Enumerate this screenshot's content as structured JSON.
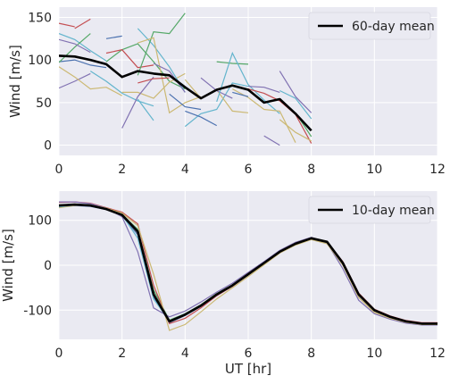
{
  "chart_data": [
    {
      "type": "line",
      "ylabel": "Wind [m/s]",
      "xlabel": "",
      "xlim": [
        0,
        12
      ],
      "ylim": [
        -12,
        162
      ],
      "xticks": [
        0,
        2,
        4,
        6,
        8,
        10,
        12
      ],
      "yticks": [
        0,
        50,
        100,
        150
      ],
      "grid": true,
      "legend_position": "top-right",
      "mean": {
        "name": "60-day mean",
        "color": "#000000",
        "x": [
          0,
          0.5,
          1,
          1.5,
          2,
          2.5,
          3,
          3.5,
          4,
          4.5,
          5,
          5.5,
          6,
          6.5,
          7,
          7.5,
          8
        ],
        "y": [
          105,
          104,
          100,
          95,
          80,
          87,
          84,
          82,
          68,
          55,
          65,
          70,
          65,
          50,
          54,
          37,
          17
        ]
      },
      "series": [
        {
          "color": "#4c72b0",
          "x": [
            0,
            0.5,
            1,
            1.5
          ],
          "y": [
            98,
            100,
            94,
            91
          ]
        },
        {
          "color": "#8172b2",
          "x": [
            0,
            0.5,
            1
          ],
          "y": [
            67,
            75,
            84
          ]
        },
        {
          "color": "#c44e52",
          "x": [
            0,
            0.5
          ],
          "y": [
            143,
            139
          ]
        },
        {
          "color": "#c44e52",
          "x": [
            0.5,
            1
          ],
          "y": [
            137,
            148
          ]
        },
        {
          "color": "#64b5cd",
          "x": [
            0,
            0.5,
            1,
            1.5
          ],
          "y": [
            131,
            124,
            111,
            99
          ]
        },
        {
          "color": "#55a868",
          "x": [
            0,
            0.5,
            1
          ],
          "y": [
            97,
            115,
            131
          ]
        },
        {
          "color": "#ccb974",
          "x": [
            0,
            0.5,
            1,
            1.5,
            2
          ],
          "y": [
            92,
            80,
            66,
            68,
            58
          ]
        },
        {
          "color": "#8172b2",
          "x": [
            0,
            0.5,
            1
          ],
          "y": [
            124,
            119,
            109
          ]
        },
        {
          "color": "#4c72b0",
          "x": [
            1.5,
            2
          ],
          "y": [
            125,
            128
          ]
        },
        {
          "color": "#64b5cd",
          "x": [
            1,
            1.5,
            2,
            2.5,
            3
          ],
          "y": [
            87,
            75,
            61,
            52,
            46
          ]
        },
        {
          "color": "#55a868",
          "x": [
            1.5,
            2,
            2.5,
            3,
            3.5,
            4
          ],
          "y": [
            98,
            112,
            119,
            98,
            75,
            66
          ]
        },
        {
          "color": "#c44e52",
          "x": [
            1.5,
            2,
            2.5,
            3
          ],
          "y": [
            108,
            112,
            91,
            94
          ]
        },
        {
          "color": "#ccb974",
          "x": [
            2,
            2.5,
            3,
            3.5,
            4
          ],
          "y": [
            62,
            62,
            55,
            74,
            84
          ]
        },
        {
          "color": "#8172b2",
          "x": [
            2,
            2.5,
            3
          ],
          "y": [
            20,
            57,
            80
          ]
        },
        {
          "color": "#64b5cd",
          "x": [
            2.5,
            3,
            3.5,
            4
          ],
          "y": [
            137,
            117,
            92,
            62
          ]
        },
        {
          "color": "#55a868",
          "x": [
            2.5,
            3,
            3.5,
            4
          ],
          "y": [
            82,
            133,
            131,
            155
          ]
        },
        {
          "color": "#ccb974",
          "x": [
            2.5,
            3,
            3.5,
            4,
            4.5
          ],
          "y": [
            120,
            126,
            38,
            50,
            57
          ]
        },
        {
          "color": "#c44e52",
          "x": [
            2.5,
            3,
            3.5
          ],
          "y": [
            73,
            78,
            79
          ]
        },
        {
          "color": "#64b5cd",
          "x": [
            2.5,
            3
          ],
          "y": [
            54,
            29
          ]
        },
        {
          "color": "#8172b2",
          "x": [
            3,
            3.5,
            4
          ],
          "y": [
            96,
            87,
            62
          ]
        },
        {
          "color": "#4c72b0",
          "x": [
            3.5,
            4,
            4.5
          ],
          "y": [
            60,
            45,
            42
          ]
        },
        {
          "color": "#64b5cd",
          "x": [
            4,
            4.5,
            5,
            5.5,
            6
          ],
          "y": [
            22,
            37,
            42,
            73,
            69
          ]
        },
        {
          "color": "#4c72b0",
          "x": [
            4,
            4.5,
            5
          ],
          "y": [
            40,
            33,
            23
          ]
        },
        {
          "color": "#ccb974",
          "x": [
            4,
            4.5,
            5,
            5.5,
            6
          ],
          "y": [
            77,
            55,
            65,
            40,
            38
          ]
        },
        {
          "color": "#8172b2",
          "x": [
            4.5,
            5,
            5.5
          ],
          "y": [
            79,
            64,
            55
          ]
        },
        {
          "color": "#55a868",
          "x": [
            5,
            5.5,
            6
          ],
          "y": [
            98,
            96,
            95
          ]
        },
        {
          "color": "#64b5cd",
          "x": [
            5,
            5.5,
            6,
            6.5,
            7
          ],
          "y": [
            51,
            108,
            71,
            53,
            37
          ]
        },
        {
          "color": "#ccb974",
          "x": [
            5.5,
            6,
            6.5,
            7,
            7.5
          ],
          "y": [
            66,
            56,
            42,
            40,
            3
          ]
        },
        {
          "color": "#8172b2",
          "x": [
            6,
            6.5,
            7
          ],
          "y": [
            69,
            68,
            62
          ]
        },
        {
          "color": "#4c72b0",
          "x": [
            5.5,
            6
          ],
          "y": [
            62,
            57
          ]
        },
        {
          "color": "#c44e52",
          "x": [
            6,
            6.5,
            7,
            7.5,
            8
          ],
          "y": [
            66,
            61,
            52,
            36,
            2
          ]
        },
        {
          "color": "#8172b2",
          "x": [
            7,
            7.5,
            8
          ],
          "y": [
            87,
            57,
            38
          ]
        },
        {
          "color": "#64b5cd",
          "x": [
            7,
            7.5,
            8
          ],
          "y": [
            64,
            55,
            31
          ]
        },
        {
          "color": "#8172b2",
          "x": [
            6.5,
            7
          ],
          "y": [
            11,
            0
          ]
        },
        {
          "color": "#ccb974",
          "x": [
            7,
            7.5,
            8
          ],
          "y": [
            30,
            15,
            5
          ]
        },
        {
          "color": "#55a868",
          "x": [
            7.5,
            8
          ],
          "y": [
            38,
            10
          ]
        }
      ]
    },
    {
      "type": "line",
      "ylabel": "Wind [m/s]",
      "xlabel": "UT [hr]",
      "xlim": [
        0,
        12
      ],
      "ylim": [
        -165,
        165
      ],
      "xticks": [
        0,
        2,
        4,
        6,
        8,
        10,
        12
      ],
      "yticks": [
        -100,
        0,
        100
      ],
      "grid": true,
      "legend_position": "top-right",
      "mean": {
        "name": "10-day mean",
        "color": "#000000",
        "x": [
          0,
          0.5,
          1,
          1.5,
          2,
          2.5,
          3,
          3.5,
          4,
          4.5,
          5,
          5.5,
          6,
          6.5,
          7,
          7.5,
          8,
          8.5,
          9,
          9.5,
          10,
          10.5,
          11,
          11.5,
          12
        ],
        "y": [
          133,
          135,
          133,
          125,
          112,
          75,
          -65,
          -125,
          -110,
          -90,
          -65,
          -45,
          -20,
          5,
          30,
          48,
          60,
          52,
          5,
          -65,
          -100,
          -115,
          -125,
          -130,
          -130
        ]
      },
      "series": [
        {
          "color": "#4c72b0",
          "x": [
            0,
            0.5,
            1,
            1.5,
            2,
            2.5,
            3,
            3.5,
            4,
            4.5,
            5,
            5.5,
            6,
            6.5,
            7,
            7.5,
            8,
            8.5,
            9,
            9.5,
            10,
            10.5,
            11,
            11.5,
            12
          ],
          "y": [
            131,
            133,
            131,
            124,
            110,
            68,
            -70,
            -128,
            -112,
            -92,
            -67,
            -46,
            -22,
            4,
            29,
            47,
            59,
            51,
            4,
            -67,
            -101,
            -116,
            -126,
            -131,
            -131
          ]
        },
        {
          "color": "#55a868",
          "x": [
            0,
            0.5,
            1,
            1.5,
            2,
            2.5,
            3,
            3.5,
            4,
            4.5,
            5,
            5.5,
            6,
            6.5,
            7,
            7.5,
            8,
            8.5,
            9,
            9.5,
            10,
            10.5,
            11,
            11.5,
            12
          ],
          "y": [
            134,
            136,
            134,
            126,
            113,
            80,
            -55,
            -122,
            -108,
            -88,
            -63,
            -44,
            -19,
            6,
            31,
            49,
            61,
            53,
            6,
            -63,
            -99,
            -114,
            -124,
            -129,
            -129
          ]
        },
        {
          "color": "#c44e52",
          "x": [
            0,
            0.5,
            1,
            1.5,
            2,
            2.5,
            3,
            3.5,
            4,
            4.5,
            5,
            5.5,
            6,
            6.5,
            7,
            7.5,
            8,
            8.5,
            9,
            9.5,
            10,
            10.5,
            11,
            11.5,
            12
          ],
          "y": [
            140,
            141,
            138,
            128,
            118,
            92,
            -45,
            -130,
            -118,
            -95,
            -68,
            -47,
            -21,
            4,
            30,
            48,
            60,
            52,
            8,
            -62,
            -98,
            -113,
            -123,
            -128,
            -128
          ]
        },
        {
          "color": "#8172b2",
          "x": [
            0,
            0.5,
            1,
            1.5,
            2,
            2.5,
            3,
            3.5,
            4,
            4.5,
            5,
            5.5,
            6,
            6.5,
            7,
            7.5,
            8,
            8.5,
            9,
            9.5,
            10,
            10.5,
            11,
            11.5,
            12
          ],
          "y": [
            141,
            141,
            137,
            127,
            108,
            30,
            -95,
            -115,
            -102,
            -82,
            -60,
            -40,
            -16,
            8,
            33,
            51,
            62,
            50,
            -8,
            -78,
            -108,
            -120,
            -129,
            -133,
            -133
          ]
        },
        {
          "color": "#ccb974",
          "x": [
            0,
            0.5,
            1,
            1.5,
            2,
            2.5,
            3,
            3.5,
            4,
            4.5,
            5,
            5.5,
            6,
            6.5,
            7,
            7.5,
            8,
            8.5,
            9,
            9.5,
            10,
            10.5,
            11,
            11.5,
            12
          ],
          "y": [
            128,
            133,
            134,
            127,
            116,
            88,
            -20,
            -145,
            -132,
            -104,
            -75,
            -50,
            -25,
            1,
            27,
            45,
            57,
            48,
            0,
            -72,
            -105,
            -118,
            -127,
            -132,
            -132
          ]
        },
        {
          "color": "#64b5cd",
          "x": [
            0,
            0.5,
            1,
            1.5,
            2,
            2.5,
            3,
            3.5,
            4,
            4.5,
            5,
            5.5,
            6,
            6.5,
            7,
            7.5,
            8,
            8.5,
            9,
            9.5,
            10,
            10.5,
            11,
            11.5,
            12
          ],
          "y": [
            130,
            134,
            134,
            126,
            112,
            60,
            -75,
            -124,
            -108,
            -89,
            -65,
            -45,
            -20,
            5,
            30,
            47,
            59,
            51,
            3,
            -66,
            -100,
            -115,
            -125,
            -130,
            -130
          ]
        },
        {
          "color": "#8c8c8c",
          "x": [
            0,
            0.5,
            1,
            1.5,
            2,
            2.5,
            3,
            3.5,
            4,
            4.5,
            5,
            5.5,
            6,
            6.5,
            7,
            7.5,
            8,
            8.5,
            9,
            9.5,
            10,
            10.5,
            11,
            11.5,
            12
          ],
          "y": [
            132,
            134,
            132,
            125,
            111,
            72,
            -62,
            -127,
            -111,
            -91,
            -66,
            -46,
            -21,
            4,
            29,
            47,
            59,
            50,
            2,
            -68,
            -102,
            -116,
            -126,
            -131,
            -131
          ]
        }
      ]
    }
  ]
}
